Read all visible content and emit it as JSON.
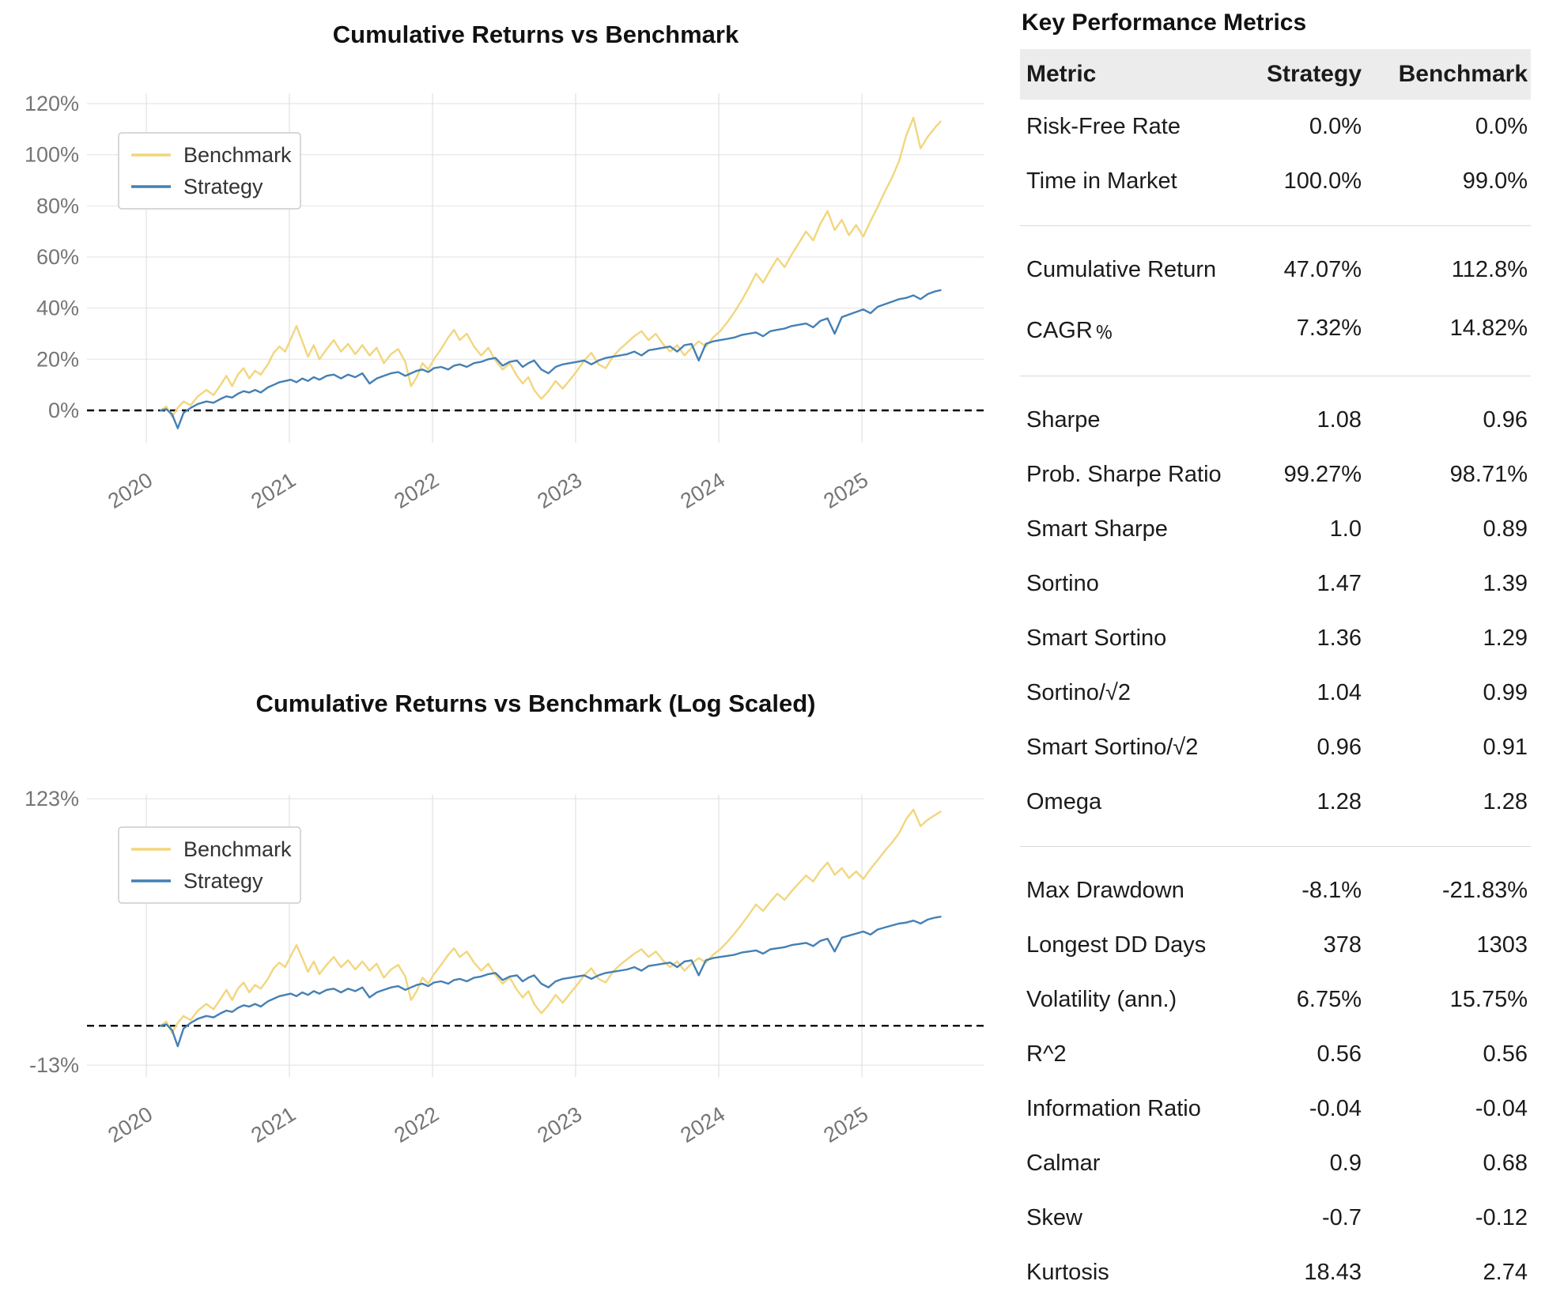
{
  "chart_data": {
    "type": "line",
    "x_unit": "year",
    "x_years": [
      2020.1,
      2020.14,
      2020.18,
      2020.22,
      2020.26,
      2020.31,
      2020.36,
      2020.42,
      2020.47,
      2020.52,
      2020.56,
      2020.6,
      2020.64,
      2020.68,
      2020.72,
      2020.76,
      2020.8,
      2020.85,
      2020.89,
      2020.93,
      2020.97,
      2021.01,
      2021.05,
      2021.09,
      2021.13,
      2021.17,
      2021.21,
      2021.26,
      2021.31,
      2021.36,
      2021.41,
      2021.46,
      2021.51,
      2021.56,
      2021.61,
      2021.66,
      2021.71,
      2021.76,
      2021.81,
      2021.85,
      2021.89,
      2021.93,
      2021.97,
      2022.01,
      2022.06,
      2022.11,
      2022.15,
      2022.19,
      2022.24,
      2022.29,
      2022.34,
      2022.39,
      2022.44,
      2022.49,
      2022.54,
      2022.59,
      2022.63,
      2022.67,
      2022.71,
      2022.76,
      2022.81,
      2022.86,
      2022.91,
      2022.96,
      2023.01,
      2023.06,
      2023.11,
      2023.16,
      2023.21,
      2023.26,
      2023.31,
      2023.36,
      2023.41,
      2023.46,
      2023.51,
      2023.56,
      2023.61,
      2023.66,
      2023.71,
      2023.76,
      2023.81,
      2023.86,
      2023.91,
      2023.96,
      2024.01,
      2024.06,
      2024.11,
      2024.16,
      2024.21,
      2024.26,
      2024.31,
      2024.36,
      2024.41,
      2024.46,
      2024.51,
      2024.56,
      2024.61,
      2024.66,
      2024.71,
      2024.76,
      2024.81,
      2024.86,
      2024.91,
      2024.96,
      2025.01,
      2025.06,
      2025.11,
      2025.16,
      2025.21,
      2025.26,
      2025.31,
      2025.36,
      2025.41,
      2025.46,
      2025.51,
      2025.55
    ],
    "series": [
      {
        "name": "Benchmark",
        "color": "#F2D67E",
        "values": [
          0,
          1.5,
          -2.5,
          1,
          3.5,
          2,
          5.5,
          8,
          6,
          10,
          13.5,
          9.5,
          14,
          16.5,
          12.5,
          15.5,
          14,
          18,
          22.5,
          25,
          23,
          28,
          33,
          27,
          21,
          25.5,
          20,
          24,
          27.5,
          23,
          26,
          22,
          25.5,
          21.5,
          24.5,
          18.5,
          22,
          24,
          19,
          9.5,
          13,
          18.5,
          16,
          20,
          24,
          28.5,
          31.5,
          27.5,
          30,
          25,
          21.5,
          24.5,
          19.5,
          16,
          18.5,
          13.5,
          10.5,
          13,
          8,
          4.5,
          7.5,
          11.5,
          8.5,
          12,
          15.5,
          19.5,
          22.5,
          18,
          16.5,
          21,
          24,
          26.5,
          29,
          31,
          27.5,
          30,
          26,
          23,
          25.5,
          21.5,
          24.5,
          27,
          25,
          28.5,
          31,
          34.5,
          38.5,
          43,
          48,
          53.5,
          50,
          55,
          59.5,
          56,
          61,
          65.5,
          70,
          66.5,
          73,
          78,
          70.5,
          74.5,
          68.5,
          72.5,
          68,
          74,
          79.5,
          85.5,
          91,
          97.5,
          107.5,
          114.5,
          102.5,
          107,
          110.5,
          113
        ]
      },
      {
        "name": "Strategy",
        "color": "#4480B4",
        "values": [
          0,
          0.5,
          -1.5,
          -7,
          -1,
          1,
          2.5,
          3.5,
          3,
          4.5,
          5.5,
          5,
          6.5,
          7.5,
          7,
          8,
          7,
          9,
          10,
          11,
          11.5,
          12,
          11,
          12.5,
          11.5,
          13,
          12,
          13.5,
          14,
          12.5,
          14,
          13,
          14.5,
          10.5,
          12.5,
          13.5,
          14.5,
          15,
          13.5,
          14.5,
          15.5,
          16,
          15,
          16.5,
          17,
          16,
          17.5,
          18,
          17,
          18.5,
          19,
          20,
          20.5,
          17.5,
          19,
          19.5,
          17,
          18.5,
          19.5,
          16,
          14.5,
          17,
          18,
          18.5,
          19,
          19.5,
          18,
          19.5,
          20.5,
          21,
          21.5,
          22,
          23,
          21.5,
          23.5,
          24,
          24.5,
          25,
          23,
          25.5,
          26,
          19.5,
          26,
          27,
          27.5,
          28,
          28.5,
          29.5,
          30,
          30.5,
          29,
          31,
          31.5,
          32,
          33,
          33.5,
          34,
          32.5,
          35,
          36,
          30,
          36.5,
          37.5,
          38.5,
          39.5,
          38,
          40.5,
          41.5,
          42.5,
          43.5,
          44,
          45,
          43.5,
          45.5,
          46.5,
          47
        ]
      }
    ],
    "charts": [
      {
        "title": "Cumulative Returns vs Benchmark",
        "scale": "linear",
        "ylim": [
          -13.5,
          123.7
        ],
        "yticks": [
          {
            "label": "120%",
            "value": 120
          },
          {
            "label": "100%",
            "value": 100
          },
          {
            "label": "80%",
            "value": 80
          },
          {
            "label": "60%",
            "value": 60
          },
          {
            "label": "40%",
            "value": 40
          },
          {
            "label": "20%",
            "value": 20
          },
          {
            "label": "0%",
            "value": 0
          }
        ],
        "xticks": [
          2020,
          2021,
          2022,
          2023,
          2024,
          2025
        ],
        "zero_line": true,
        "grid": true,
        "legend": {
          "entries": [
            "Benchmark",
            "Strategy"
          ],
          "position": "upper left"
        }
      },
      {
        "title": "Cumulative Returns vs Benchmark (Log Scaled)",
        "scale": "log",
        "ylim": [
          -13,
          123
        ],
        "yticks": [
          {
            "label": "123%",
            "value": 123
          },
          {
            "label": "-13%",
            "value": -13
          }
        ],
        "xticks": [
          2020,
          2021,
          2022,
          2023,
          2024,
          2025
        ],
        "zero_line": true,
        "grid": true,
        "legend": {
          "entries": [
            "Benchmark",
            "Strategy"
          ],
          "position": "upper left"
        }
      }
    ]
  },
  "table": {
    "title": "Key Performance Metrics",
    "headers": [
      "Metric",
      "Strategy",
      "Benchmark"
    ],
    "groups": [
      [
        {
          "metric": "Risk-Free Rate",
          "strategy": "0.0%",
          "benchmark": "0.0%"
        },
        {
          "metric": "Time in Market",
          "strategy": "100.0%",
          "benchmark": "99.0%"
        }
      ],
      [
        {
          "metric": "Cumulative Return",
          "strategy": "47.07%",
          "benchmark": "112.8%"
        },
        {
          "metric": "CAGR﹪",
          "strategy": "7.32%",
          "benchmark": "14.82%"
        }
      ],
      [
        {
          "metric": "Sharpe",
          "strategy": "1.08",
          "benchmark": "0.96"
        },
        {
          "metric": "Prob. Sharpe Ratio",
          "strategy": "99.27%",
          "benchmark": "98.71%"
        },
        {
          "metric": "Smart Sharpe",
          "strategy": "1.0",
          "benchmark": "0.89"
        },
        {
          "metric": "Sortino",
          "strategy": "1.47",
          "benchmark": "1.39"
        },
        {
          "metric": "Smart Sortino",
          "strategy": "1.36",
          "benchmark": "1.29"
        },
        {
          "metric": "Sortino/√2",
          "strategy": "1.04",
          "benchmark": "0.99"
        },
        {
          "metric": "Smart Sortino/√2",
          "strategy": "0.96",
          "benchmark": "0.91"
        },
        {
          "metric": "Omega",
          "strategy": "1.28",
          "benchmark": "1.28"
        }
      ],
      [
        {
          "metric": "Max Drawdown",
          "strategy": "-8.1%",
          "benchmark": "-21.83%"
        },
        {
          "metric": "Longest DD Days",
          "strategy": "378",
          "benchmark": "1303"
        },
        {
          "metric": "Volatility (ann.)",
          "strategy": "6.75%",
          "benchmark": "15.75%"
        },
        {
          "metric": "R^2",
          "strategy": "0.56",
          "benchmark": "0.56"
        },
        {
          "metric": "Information Ratio",
          "strategy": "-0.04",
          "benchmark": "-0.04"
        },
        {
          "metric": "Calmar",
          "strategy": "0.9",
          "benchmark": "0.68"
        },
        {
          "metric": "Skew",
          "strategy": "-0.7",
          "benchmark": "-0.12"
        },
        {
          "metric": "Kurtosis",
          "strategy": "18.43",
          "benchmark": "2.74"
        }
      ]
    ]
  }
}
